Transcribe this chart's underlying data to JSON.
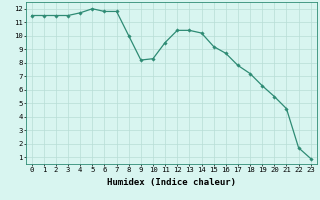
{
  "title": "",
  "xlabel": "Humidex (Indice chaleur)",
  "x": [
    0,
    1,
    2,
    3,
    4,
    5,
    6,
    7,
    8,
    9,
    10,
    11,
    12,
    13,
    14,
    15,
    16,
    17,
    18,
    19,
    20,
    21,
    22,
    23
  ],
  "y": [
    11.5,
    11.5,
    11.5,
    11.5,
    11.7,
    12.0,
    11.8,
    11.8,
    10.0,
    8.2,
    8.3,
    9.5,
    10.4,
    10.4,
    10.2,
    9.2,
    8.7,
    7.8,
    7.2,
    6.3,
    5.5,
    4.6,
    1.7,
    0.9
  ],
  "line_color": "#2e8b74",
  "marker": "D",
  "marker_size": 1.8,
  "bg_color": "#d8f5f0",
  "grid_color": "#b8ddd6",
  "ylim": [
    0.5,
    12.5
  ],
  "xlim": [
    -0.5,
    23.5
  ],
  "yticks": [
    1,
    2,
    3,
    4,
    5,
    6,
    7,
    8,
    9,
    10,
    11,
    12
  ],
  "xticks": [
    0,
    1,
    2,
    3,
    4,
    5,
    6,
    7,
    8,
    9,
    10,
    11,
    12,
    13,
    14,
    15,
    16,
    17,
    18,
    19,
    20,
    21,
    22,
    23
  ],
  "tick_label_fontsize": 5.2,
  "xlabel_fontsize": 6.5,
  "line_width": 0.9
}
